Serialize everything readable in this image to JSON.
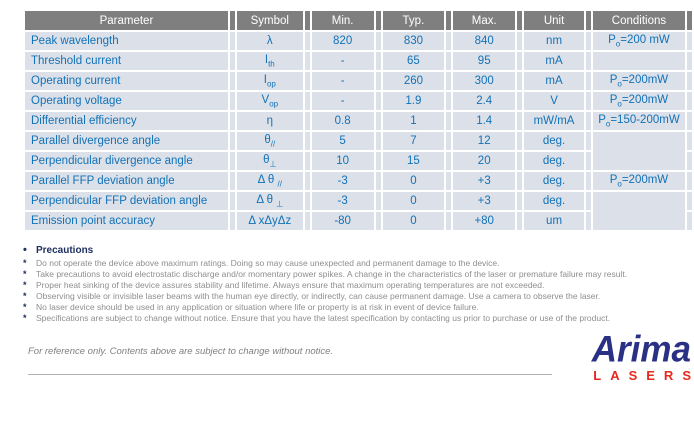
{
  "colors": {
    "header_bg": "#7f7f7f",
    "row_bg": "#dce0e8",
    "table_text_blue": "#1272b8",
    "precaution_title_navy": "#1f3060",
    "precaution_text_gray": "#8e8e8e",
    "logo_navy": "#2a3185",
    "logo_red": "#e8281d"
  },
  "table": {
    "headers": [
      "Parameter",
      "Symbol",
      "Min.",
      "Typ.",
      "Max.",
      "Unit",
      "Conditions"
    ],
    "rows": [
      {
        "parameter": "Peak wavelength",
        "symbol": [
          {
            "t": "λ"
          }
        ],
        "min": "820",
        "typ": "830",
        "max": "840",
        "unit": "nm",
        "cond": [
          {
            "t": "P"
          },
          {
            "t": "o",
            "sub": true
          },
          {
            "t": "=200 mW"
          }
        ],
        "cond_span": 1
      },
      {
        "parameter": "Threshold current",
        "symbol": [
          {
            "t": "I"
          },
          {
            "t": "th",
            "sub": true
          }
        ],
        "min": "-",
        "typ": "65",
        "max": "95",
        "unit": "mA",
        "cond": [],
        "cond_span": 1
      },
      {
        "parameter": "Operating current",
        "symbol": [
          {
            "t": "I"
          },
          {
            "t": "op",
            "sub": true
          }
        ],
        "min": "-",
        "typ": "260",
        "max": "300",
        "unit": "mA",
        "cond": [
          {
            "t": "P"
          },
          {
            "t": "o",
            "sub": true
          },
          {
            "t": "=200mW"
          }
        ],
        "cond_span": 1
      },
      {
        "parameter": "Operating voltage",
        "symbol": [
          {
            "t": "V"
          },
          {
            "t": "op",
            "sub": true
          }
        ],
        "min": "-",
        "typ": "1.9",
        "max": "2.4",
        "unit": "V",
        "cond": [
          {
            "t": "P"
          },
          {
            "t": "o",
            "sub": true
          },
          {
            "t": "=200mW"
          }
        ],
        "cond_span": 1
      },
      {
        "parameter": "Differential efficiency",
        "symbol": [
          {
            "t": "η"
          }
        ],
        "min": "0.8",
        "typ": "1",
        "max": "1.4",
        "unit": "mW/mA",
        "cond": [
          {
            "t": "P"
          },
          {
            "t": "o",
            "sub": true
          },
          {
            "t": "=150-200mW"
          }
        ],
        "cond_span": 1
      },
      {
        "parameter": "Parallel divergence angle",
        "symbol": [
          {
            "t": "θ"
          },
          {
            "t": "//",
            "sub": true
          }
        ],
        "min": "5",
        "typ": "7",
        "max": "12",
        "unit": "deg.",
        "cond": [],
        "cond_span": 2
      },
      {
        "parameter": "Perpendicular divergence angle",
        "symbol": [
          {
            "t": "θ"
          },
          {
            "t": "⊥",
            "sub": true
          }
        ],
        "min": "10",
        "typ": "15",
        "max": "20",
        "unit": "deg.",
        "cond": [],
        "cond_span": 0
      },
      {
        "parameter": "Parallel FFP deviation angle",
        "symbol": [
          {
            "t": "Δ θ "
          },
          {
            "t": "//",
            "sub": true
          }
        ],
        "min": "-3",
        "typ": "0",
        "max": "+3",
        "unit": "deg.",
        "cond": [
          {
            "t": "P"
          },
          {
            "t": "o",
            "sub": true
          },
          {
            "t": "=200mW"
          }
        ],
        "cond_span": 1
      },
      {
        "parameter": "Perpendicular FFP deviation angle",
        "symbol": [
          {
            "t": "Δ θ "
          },
          {
            "t": "⊥",
            "sub": true
          }
        ],
        "min": "-3",
        "typ": "0",
        "max": "+3",
        "unit": "deg.",
        "cond": [],
        "cond_span": 2
      },
      {
        "parameter": "Emission point accuracy",
        "symbol": [
          {
            "t": "Δ xΔyΔz"
          }
        ],
        "min": "-80",
        "typ": "0",
        "max": "+80",
        "unit": "um",
        "cond": [],
        "cond_span": 0
      }
    ]
  },
  "precautions": {
    "title_bullet": "•",
    "title": "Precautions",
    "item_bullet": "*",
    "items": [
      "Do not operate the device above maximum ratings. Doing so may cause unexpected and permanent damage to the device.",
      "Take precautions to avoid electrostatic discharge and/or momentary power spikes. A change in the characteristics of the laser or premature failure may result.",
      "Proper heat sinking of the device assures stability and lifetime. Always ensure that maximum operating temperatures are not exceeded.",
      "Observing visible or invisible laser beams with the human eye directly, or indirectly, can cause permanent damage. Use a camera to observe the laser.",
      "No laser device should be used in any application or situation where life or property is at risk in event of device failure.",
      "Specifications are subject to change without notice. Ensure that you have the latest specification by contacting us prior to purchase or use of the product."
    ]
  },
  "footer": {
    "note": "For reference only.    Contents above are subject to change without notice.",
    "logo_main": "Arima",
    "logo_sub": "LASERS"
  }
}
